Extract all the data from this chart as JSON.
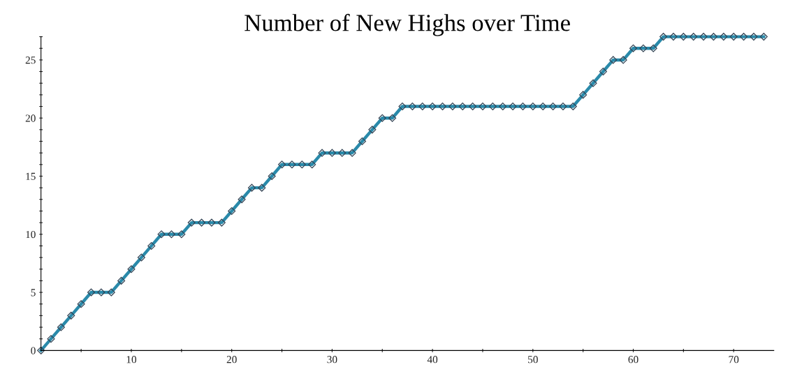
{
  "chart_data": {
    "type": "line",
    "title": "Number of New Highs over Time",
    "x": [
      1,
      2,
      3,
      4,
      5,
      6,
      7,
      8,
      9,
      10,
      11,
      12,
      13,
      14,
      15,
      16,
      17,
      18,
      19,
      20,
      21,
      22,
      23,
      24,
      25,
      26,
      27,
      28,
      29,
      30,
      31,
      32,
      33,
      34,
      35,
      36,
      37,
      38,
      39,
      40,
      41,
      42,
      43,
      44,
      45,
      46,
      47,
      48,
      49,
      50,
      51,
      52,
      53,
      54,
      55,
      56,
      57,
      58,
      59,
      60,
      61,
      62,
      63,
      64,
      65,
      66,
      67,
      68,
      69,
      70,
      71,
      72,
      73
    ],
    "series": [
      {
        "color": "#2a8aaa",
        "values": [
          0,
          1,
          2,
          3,
          4,
          5,
          5,
          5,
          6,
          7,
          8,
          9,
          10,
          10,
          10,
          11,
          11,
          11,
          11,
          12,
          13,
          14,
          14,
          15,
          16,
          16,
          16,
          16,
          17,
          17,
          17,
          17,
          18,
          19,
          20,
          20,
          21,
          21,
          21,
          21,
          21,
          21,
          21,
          21,
          21,
          21,
          21,
          21,
          21,
          21,
          21,
          21,
          21,
          21,
          22,
          23,
          24,
          25,
          25,
          26,
          26,
          26,
          27,
          27,
          27,
          27,
          27,
          27,
          27,
          27,
          27,
          27,
          27
        ]
      }
    ],
    "xlim": [
      1,
      74
    ],
    "ylim": [
      0,
      27
    ],
    "xticks": [
      {
        "value": 5,
        "label": null
      },
      10,
      {
        "value": 15,
        "label": null
      },
      20,
      {
        "value": 25,
        "label": null
      },
      30,
      {
        "value": 35,
        "label": null
      },
      40,
      {
        "value": 45,
        "label": null
      },
      50,
      {
        "value": 55,
        "label": null
      },
      60,
      {
        "value": 65,
        "label": null
      },
      70
    ],
    "yticks": [
      0,
      {
        "value": 1,
        "label": null
      },
      {
        "value": 2,
        "label": null
      },
      {
        "value": 3,
        "label": null
      },
      {
        "value": 4,
        "label": null
      },
      5,
      {
        "value": 6,
        "label": null
      },
      {
        "value": 7,
        "label": null
      },
      {
        "value": 8,
        "label": null
      },
      {
        "value": 9,
        "label": null
      },
      10,
      {
        "value": 11,
        "label": null
      },
      {
        "value": 12,
        "label": null
      },
      {
        "value": 13,
        "label": null
      },
      {
        "value": 14,
        "label": null
      },
      15,
      {
        "value": 16,
        "label": null
      },
      {
        "value": 17,
        "label": null
      },
      {
        "value": 18,
        "label": null
      },
      {
        "value": 19,
        "label": null
      },
      20,
      {
        "value": 21,
        "label": null
      },
      {
        "value": 22,
        "label": null
      },
      {
        "value": 23,
        "label": null
      },
      {
        "value": 24,
        "label": null
      },
      25,
      {
        "value": 26,
        "label": null
      },
      {
        "value": 27,
        "label": null
      }
    ],
    "marker": "diamond",
    "line_style": "solid",
    "grid": false
  }
}
